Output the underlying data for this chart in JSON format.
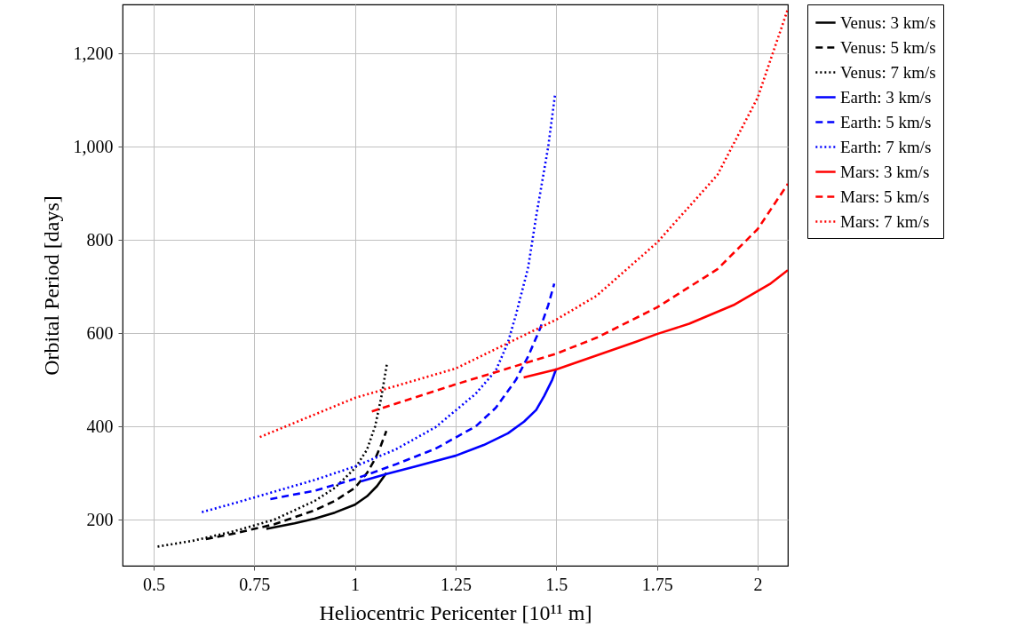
{
  "chart_data": {
    "type": "line",
    "xlabel": "Heliocentric Pericenter [10¹¹ m]",
    "ylabel": "Orbital Period [days]",
    "xlim": [
      0.423,
      2.075
    ],
    "ylim": [
      101,
      1305
    ],
    "xticks": [
      0.5,
      0.75,
      1,
      1.25,
      1.5,
      1.75,
      2
    ],
    "yticks": [
      200,
      400,
      600,
      800,
      {
        "value": 1000,
        "label": "1,000"
      },
      {
        "value": 1200,
        "label": "1,200"
      }
    ],
    "grid": true,
    "legend": "right",
    "series": [
      {
        "name": "Venus: 3 km/s",
        "color": "#000000",
        "line_style": "solid",
        "x": [
          0.78,
          0.85,
          0.9,
          0.95,
          1.0,
          1.03,
          1.055,
          1.07,
          1.078
        ],
        "values": [
          180,
          192,
          202,
          215,
          232,
          250,
          272,
          290,
          300
        ]
      },
      {
        "name": "Venus: 5 km/s",
        "color": "#000000",
        "line_style": "dashed",
        "x": [
          0.63,
          0.7,
          0.8,
          0.9,
          0.95,
          1.0,
          1.03,
          1.05,
          1.065,
          1.078
        ],
        "values": [
          158,
          170,
          190,
          220,
          240,
          268,
          300,
          330,
          360,
          390
        ]
      },
      {
        "name": "Venus: 7 km/s",
        "color": "#000000",
        "line_style": "dotted",
        "x": [
          0.51,
          0.6,
          0.7,
          0.8,
          0.9,
          0.95,
          1.0,
          1.03,
          1.05,
          1.065,
          1.08
        ],
        "values": [
          142,
          155,
          175,
          200,
          240,
          268,
          310,
          350,
          400,
          460,
          537
        ]
      },
      {
        "name": "Earth: 3 km/s",
        "color": "#0000ff",
        "line_style": "solid",
        "x": [
          1.015,
          1.08,
          1.15,
          1.25,
          1.32,
          1.38,
          1.42,
          1.45,
          1.47,
          1.49,
          1.5
        ],
        "values": [
          282,
          298,
          314,
          337,
          360,
          385,
          410,
          435,
          465,
          500,
          524
        ]
      },
      {
        "name": "Earth: 5 km/s",
        "color": "#0000ff",
        "line_style": "dashed",
        "x": [
          0.79,
          0.9,
          1.0,
          1.1,
          1.2,
          1.3,
          1.35,
          1.4,
          1.43,
          1.46,
          1.48,
          1.495
        ],
        "values": [
          244,
          262,
          287,
          318,
          352,
          400,
          440,
          500,
          550,
          610,
          660,
          706
        ]
      },
      {
        "name": "Earth: 7 km/s",
        "color": "#0000ff",
        "line_style": "dotted",
        "x": [
          0.62,
          0.7,
          0.8,
          0.9,
          1.0,
          1.1,
          1.2,
          1.3,
          1.35,
          1.38,
          1.4,
          1.43,
          1.45,
          1.47,
          1.48,
          1.497
        ],
        "values": [
          216,
          235,
          260,
          285,
          314,
          350,
          398,
          470,
          520,
          580,
          640,
          740,
          850,
          950,
          1000,
          1112
        ]
      },
      {
        "name": "Mars: 3 km/s",
        "color": "#ff0000",
        "line_style": "solid",
        "x": [
          1.419,
          1.5,
          1.6,
          1.7,
          1.75,
          1.83,
          1.94,
          2.03,
          2.075
        ],
        "values": [
          505,
          522,
          552,
          582,
          598,
          620,
          660,
          705,
          735
        ]
      },
      {
        "name": "Mars: 5 km/s",
        "color": "#ff0000",
        "line_style": "dashed",
        "x": [
          1.042,
          1.25,
          1.5,
          1.6,
          1.75,
          1.9,
          2.0,
          2.075
        ],
        "values": [
          432,
          490,
          556,
          590,
          655,
          737,
          823,
          920
        ]
      },
      {
        "name": "Mars: 7 km/s",
        "color": "#ff0000",
        "line_style": "dotted",
        "x": [
          0.764,
          1.0,
          1.25,
          1.5,
          1.6,
          1.75,
          1.9,
          2.0,
          2.075
        ],
        "values": [
          377,
          461,
          524,
          629,
          680,
          794,
          939,
          1105,
          1295
        ]
      }
    ]
  }
}
